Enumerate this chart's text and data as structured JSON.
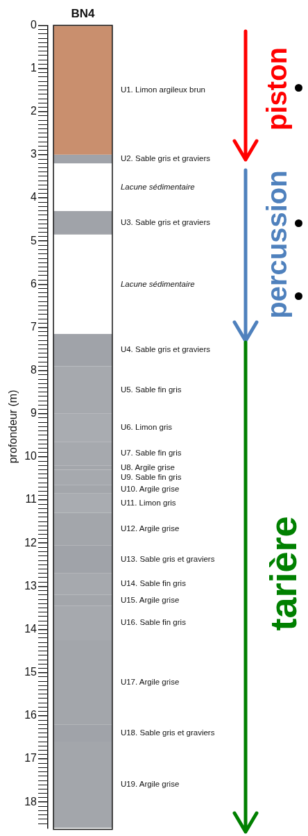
{
  "chart_data": {
    "type": "bar",
    "stacked": true,
    "categories": [
      "BN4"
    ],
    "ylabel": "profondeur (m)",
    "ylim": [
      18.6,
      0
    ],
    "yticks": [
      0,
      {
        "value": 0.1,
        "label": null
      },
      {
        "value": 0.2,
        "label": null
      },
      {
        "value": 0.3,
        "label": null
      },
      {
        "value": 0.4,
        "label": null
      },
      {
        "value": 0.5,
        "label": null
      },
      {
        "value": 0.6,
        "label": null
      },
      {
        "value": 0.7,
        "label": null
      },
      {
        "value": 0.8,
        "label": null
      },
      {
        "value": 0.9,
        "label": null
      },
      1,
      {
        "value": 1.1,
        "label": null
      },
      {
        "value": 1.2,
        "label": null
      },
      {
        "value": 1.3,
        "label": null
      },
      {
        "value": 1.4,
        "label": null
      },
      {
        "value": 1.5,
        "label": null
      },
      {
        "value": 1.6,
        "label": null
      },
      {
        "value": 1.7,
        "label": null
      },
      {
        "value": 1.8,
        "label": null
      },
      {
        "value": 1.9,
        "label": null
      },
      2,
      {
        "value": 2.1,
        "label": null
      },
      {
        "value": 2.2,
        "label": null
      },
      {
        "value": 2.3,
        "label": null
      },
      {
        "value": 2.4,
        "label": null
      },
      {
        "value": 2.5,
        "label": null
      },
      {
        "value": 2.6,
        "label": null
      },
      {
        "value": 2.7,
        "label": null
      },
      {
        "value": 2.8,
        "label": null
      },
      {
        "value": 2.9,
        "label": null
      },
      3,
      {
        "value": 3.1,
        "label": null
      },
      {
        "value": 3.2,
        "label": null
      },
      {
        "value": 3.3,
        "label": null
      },
      {
        "value": 3.4,
        "label": null
      },
      {
        "value": 3.5,
        "label": null
      },
      {
        "value": 3.6,
        "label": null
      },
      {
        "value": 3.7,
        "label": null
      },
      {
        "value": 3.8,
        "label": null
      },
      {
        "value": 3.9,
        "label": null
      },
      4,
      {
        "value": 4.1,
        "label": null
      },
      {
        "value": 4.2,
        "label": null
      },
      {
        "value": 4.3,
        "label": null
      },
      {
        "value": 4.4,
        "label": null
      },
      {
        "value": 4.5,
        "label": null
      },
      {
        "value": 4.6,
        "label": null
      },
      {
        "value": 4.7,
        "label": null
      },
      {
        "value": 4.8,
        "label": null
      },
      {
        "value": 4.9,
        "label": null
      },
      5,
      {
        "value": 5.1,
        "label": null
      },
      {
        "value": 5.2,
        "label": null
      },
      {
        "value": 5.3,
        "label": null
      },
      {
        "value": 5.4,
        "label": null
      },
      {
        "value": 5.5,
        "label": null
      },
      {
        "value": 5.6,
        "label": null
      },
      {
        "value": 5.7,
        "label": null
      },
      {
        "value": 5.8,
        "label": null
      },
      {
        "value": 5.9,
        "label": null
      },
      6,
      {
        "value": 6.1,
        "label": null
      },
      {
        "value": 6.2,
        "label": null
      },
      {
        "value": 6.3,
        "label": null
      },
      {
        "value": 6.4,
        "label": null
      },
      {
        "value": 6.5,
        "label": null
      },
      {
        "value": 6.6,
        "label": null
      },
      {
        "value": 6.7,
        "label": null
      },
      {
        "value": 6.8,
        "label": null
      },
      {
        "value": 6.9,
        "label": null
      },
      7,
      {
        "value": 7.1,
        "label": null
      },
      {
        "value": 7.2,
        "label": null
      },
      {
        "value": 7.3,
        "label": null
      },
      {
        "value": 7.4,
        "label": null
      },
      {
        "value": 7.5,
        "label": null
      },
      {
        "value": 7.6,
        "label": null
      },
      {
        "value": 7.7,
        "label": null
      },
      {
        "value": 7.8,
        "label": null
      },
      {
        "value": 7.9,
        "label": null
      },
      8,
      {
        "value": 8.1,
        "label": null
      },
      {
        "value": 8.2,
        "label": null
      },
      {
        "value": 8.3,
        "label": null
      },
      {
        "value": 8.4,
        "label": null
      },
      {
        "value": 8.5,
        "label": null
      },
      {
        "value": 8.6,
        "label": null
      },
      {
        "value": 8.7,
        "label": null
      },
      {
        "value": 8.8,
        "label": null
      },
      {
        "value": 8.9,
        "label": null
      },
      9,
      {
        "value": 9.1,
        "label": null
      },
      {
        "value": 9.2,
        "label": null
      },
      {
        "value": 9.3,
        "label": null
      },
      {
        "value": 9.4,
        "label": null
      },
      {
        "value": 9.5,
        "label": null
      },
      {
        "value": 9.6,
        "label": null
      },
      {
        "value": 9.7,
        "label": null
      },
      {
        "value": 9.8,
        "label": null
      },
      {
        "value": 9.9,
        "label": null
      },
      10,
      {
        "value": 10.1,
        "label": null
      },
      {
        "value": 10.2,
        "label": null
      },
      {
        "value": 10.3,
        "label": null
      },
      {
        "value": 10.4,
        "label": null
      },
      {
        "value": 10.5,
        "label": null
      },
      {
        "value": 10.6,
        "label": null
      },
      {
        "value": 10.7,
        "label": null
      },
      {
        "value": 10.8,
        "label": null
      },
      {
        "value": 10.9,
        "label": null
      },
      11,
      {
        "value": 11.1,
        "label": null
      },
      {
        "value": 11.2,
        "label": null
      },
      {
        "value": 11.3,
        "label": null
      },
      {
        "value": 11.4,
        "label": null
      },
      {
        "value": 11.5,
        "label": null
      },
      {
        "value": 11.6,
        "label": null
      },
      {
        "value": 11.7,
        "label": null
      },
      {
        "value": 11.8,
        "label": null
      },
      {
        "value": 11.9,
        "label": null
      },
      12,
      {
        "value": 12.1,
        "label": null
      },
      {
        "value": 12.2,
        "label": null
      },
      {
        "value": 12.3,
        "label": null
      },
      {
        "value": 12.4,
        "label": null
      },
      {
        "value": 12.5,
        "label": null
      },
      {
        "value": 12.6,
        "label": null
      },
      {
        "value": 12.7,
        "label": null
      },
      {
        "value": 12.8,
        "label": null
      },
      {
        "value": 12.9,
        "label": null
      },
      13,
      {
        "value": 13.1,
        "label": null
      },
      {
        "value": 13.2,
        "label": null
      },
      {
        "value": 13.3,
        "label": null
      },
      {
        "value": 13.4,
        "label": null
      },
      {
        "value": 13.5,
        "label": null
      },
      {
        "value": 13.6,
        "label": null
      },
      {
        "value": 13.7,
        "label": null
      },
      {
        "value": 13.8,
        "label": null
      },
      {
        "value": 13.9,
        "label": null
      },
      14,
      {
        "value": 14.1,
        "label": null
      },
      {
        "value": 14.2,
        "label": null
      },
      {
        "value": 14.3,
        "label": null
      },
      {
        "value": 14.4,
        "label": null
      },
      {
        "value": 14.5,
        "label": null
      },
      {
        "value": 14.6,
        "label": null
      },
      {
        "value": 14.7,
        "label": null
      },
      {
        "value": 14.8,
        "label": null
      },
      {
        "value": 14.9,
        "label": null
      },
      15,
      {
        "value": 15.1,
        "label": null
      },
      {
        "value": 15.2,
        "label": null
      },
      {
        "value": 15.3,
        "label": null
      },
      {
        "value": 15.4,
        "label": null
      },
      {
        "value": 15.5,
        "label": null
      },
      {
        "value": 15.6,
        "label": null
      },
      {
        "value": 15.7,
        "label": null
      },
      {
        "value": 15.8,
        "label": null
      },
      {
        "value": 15.9,
        "label": null
      },
      16,
      {
        "value": 16.1,
        "label": null
      },
      {
        "value": 16.2,
        "label": null
      },
      {
        "value": 16.3,
        "label": null
      },
      {
        "value": 16.4,
        "label": null
      },
      {
        "value": 16.5,
        "label": null
      },
      {
        "value": 16.6,
        "label": null
      },
      {
        "value": 16.7,
        "label": null
      },
      {
        "value": 16.8,
        "label": null
      },
      {
        "value": 16.9,
        "label": null
      },
      17,
      {
        "value": 17.1,
        "label": null
      },
      {
        "value": 17.2,
        "label": null
      },
      {
        "value": 17.3,
        "label": null
      },
      {
        "value": 17.4,
        "label": null
      },
      {
        "value": 17.5,
        "label": null
      },
      {
        "value": 17.6,
        "label": null
      },
      {
        "value": 17.7,
        "label": null
      },
      {
        "value": 17.8,
        "label": null
      },
      {
        "value": 17.9,
        "label": null
      },
      18,
      {
        "value": 18.1,
        "label": null
      },
      {
        "value": 18.2,
        "label": null
      },
      {
        "value": 18.3,
        "label": null
      },
      {
        "value": 18.4,
        "label": null
      },
      {
        "value": 18.5,
        "label": null
      }
    ],
    "series": [
      {
        "name": "U1. Limon argileux brun",
        "color": "#c98f6e",
        "values": [
          3.0
        ]
      },
      {
        "name": "U2. Sable gris et graviers",
        "color": "#a0a3a9",
        "values": [
          0.2
        ]
      },
      {
        "name": "Lacune sédimentaire",
        "color": "#ffffff",
        "values": [
          1.1
        ]
      },
      {
        "name": "U3. Sable gris et graviers",
        "color": "#a0a3a9",
        "values": [
          0.55
        ]
      },
      {
        "name": "Lacune sédimentaire",
        "color": "#ffffff",
        "values": [
          2.3
        ]
      },
      {
        "name": "U4. Sable gris et graviers",
        "color": "#a0a3a9",
        "values": [
          0.75
        ]
      },
      {
        "name": "U5. Sable fin gris",
        "color": "#a6a9ae",
        "values": [
          1.1
        ]
      },
      {
        "name": "U6. Limon gris",
        "color": "#a9acb1",
        "values": [
          0.65
        ]
      },
      {
        "name": "U7. Sable fin gris",
        "color": "#a6a9ae",
        "values": [
          0.55
        ]
      },
      {
        "name": "U8. Argile grise",
        "color": "#a3a6ab",
        "values": [
          0.1
        ]
      },
      {
        "name": "U9. Sable fin gris",
        "color": "#a6a9ae",
        "values": [
          0.35
        ]
      },
      {
        "name": "U10. Argile grise",
        "color": "#a3a6ab",
        "values": [
          0.2
        ]
      },
      {
        "name": "U11. Limon gris",
        "color": "#a9acb1",
        "values": [
          0.45
        ]
      },
      {
        "name": "U12. Argile grise",
        "color": "#a3a6ab",
        "values": [
          0.75
        ]
      },
      {
        "name": "U13. Sable gris et graviers",
        "color": "#a0a3a9",
        "values": [
          0.65
        ]
      },
      {
        "name": "U14. Sable fin gris",
        "color": "#a6a9ae",
        "values": [
          0.5
        ]
      },
      {
        "name": "U15. Argile grise",
        "color": "#a3a6ab",
        "values": [
          0.25
        ]
      },
      {
        "name": "U16. Sable fin gris",
        "color": "#a6a9ae",
        "values": [
          0.8
        ]
      },
      {
        "name": "U17. Argile grise",
        "color": "#a3a6ab",
        "values": [
          1.95
        ]
      },
      {
        "name": "U18. Sable gris et graviers",
        "color": "#a0a3a9",
        "values": [
          0.4
        ]
      },
      {
        "name": "U19. Argile grise",
        "color": "#a3a6ab",
        "values": [
          2.0
        ]
      }
    ],
    "annotations": [
      "piston",
      "percussion",
      "tarière"
    ]
  }
}
